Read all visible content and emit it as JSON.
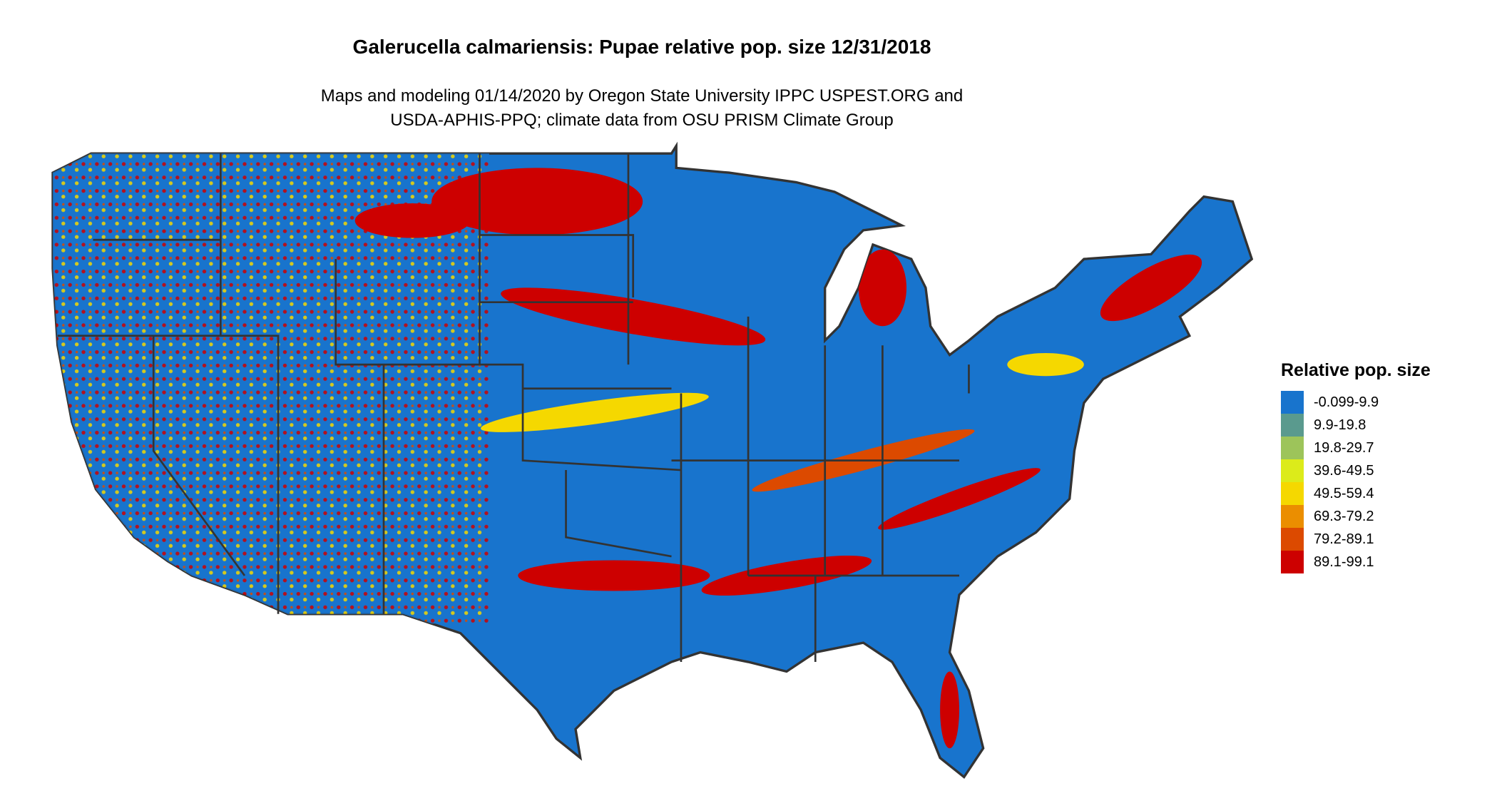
{
  "title": "Galerucella calmariensis: Pupae relative pop. size 12/31/2018",
  "subtitle": [
    "Maps and modeling 01/14/2020 by Oregon State University IPPC USPEST.ORG and",
    "USDA-APHIS-PPQ; climate data from OSU PRISM Climate Group"
  ],
  "map": {
    "region": "Contiguous United States",
    "base_color": "#1874CD",
    "border_color": "#333333"
  },
  "legend": {
    "title": "Relative pop. size",
    "items": [
      {
        "label": "-0.099-9.9",
        "color": "#1874CD"
      },
      {
        "label": "9.9-19.8",
        "color": "#5A9A8E"
      },
      {
        "label": "19.8-29.7",
        "color": "#9DC45A"
      },
      {
        "label": "39.6-49.5",
        "color": "#DCEB1A"
      },
      {
        "label": "49.5-59.4",
        "color": "#F5D800"
      },
      {
        "label": "69.3-79.2",
        "color": "#EB8E00"
      },
      {
        "label": "79.2-89.1",
        "color": "#DC4A00"
      },
      {
        "label": "89.1-99.1",
        "color": "#CD0000"
      }
    ]
  }
}
